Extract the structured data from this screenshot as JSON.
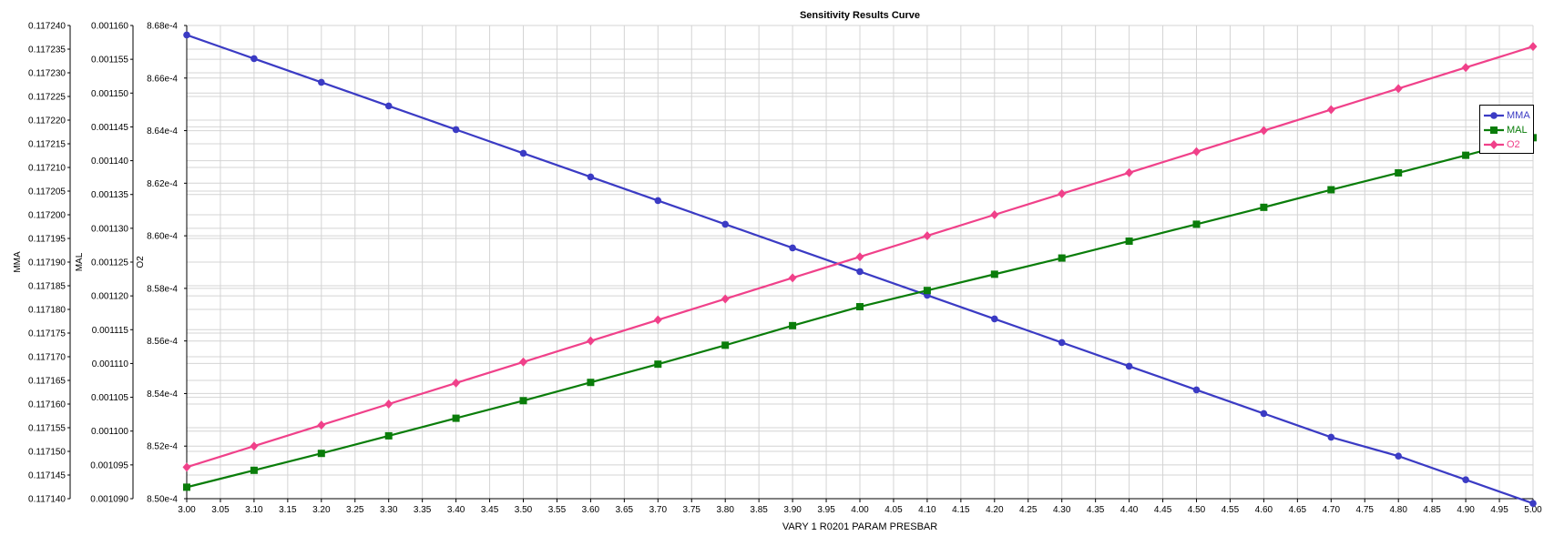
{
  "chart_data": {
    "type": "line",
    "title": "Sensitivity Results Curve",
    "xlabel": "VARY  1 R0201 PARAM PRESBAR",
    "xlim": [
      3.0,
      5.0
    ],
    "x_ticks": [
      "3.00",
      "3.05",
      "3.10",
      "3.15",
      "3.20",
      "3.25",
      "3.30",
      "3.35",
      "3.40",
      "3.45",
      "3.50",
      "3.55",
      "3.60",
      "3.65",
      "3.70",
      "3.75",
      "3.80",
      "3.85",
      "3.90",
      "3.95",
      "4.00",
      "4.05",
      "4.10",
      "4.15",
      "4.20",
      "4.25",
      "4.30",
      "4.35",
      "4.40",
      "4.45",
      "4.50",
      "4.55",
      "4.60",
      "4.65",
      "4.70",
      "4.75",
      "4.80",
      "4.85",
      "4.90",
      "4.95",
      "5.00"
    ],
    "x": [
      3.0,
      3.1,
      3.2,
      3.3,
      3.4,
      3.5,
      3.6,
      3.7,
      3.8,
      3.9,
      4.0,
      4.1,
      4.2,
      4.3,
      4.4,
      4.5,
      4.6,
      4.7,
      4.8,
      4.9,
      5.0
    ],
    "grid": true,
    "legend_position": "right",
    "axes": [
      {
        "id": "mma",
        "label": "MMA",
        "ylim": [
          0.11714,
          0.11724
        ],
        "ticks": [
          "0.117140",
          "0.117145",
          "0.117150",
          "0.117155",
          "0.117160",
          "0.117165",
          "0.117170",
          "0.117175",
          "0.117180",
          "0.117185",
          "0.117190",
          "0.117195",
          "0.117200",
          "0.117205",
          "0.117210",
          "0.117215",
          "0.117220",
          "0.117225",
          "0.117230",
          "0.117235",
          "0.117240"
        ]
      },
      {
        "id": "mal",
        "label": "MAL",
        "ylim": [
          0.00109,
          0.00116
        ],
        "ticks": [
          "0.001090",
          "0.001095",
          "0.001100",
          "0.001105",
          "0.001110",
          "0.001115",
          "0.001120",
          "0.001125",
          "0.001130",
          "0.001135",
          "0.001140",
          "0.001145",
          "0.001150",
          "0.001155",
          "0.001160"
        ]
      },
      {
        "id": "o2",
        "label": "O2",
        "ylim": [
          0.00085,
          0.000868
        ],
        "ticks": [
          "8.50e-4",
          "8.52e-4",
          "8.54e-4",
          "8.56e-4",
          "8.58e-4",
          "8.60e-4",
          "8.62e-4",
          "8.64e-4",
          "8.66e-4",
          "8.68e-4"
        ]
      }
    ],
    "series": [
      {
        "name": "MMA",
        "axis": "mma",
        "color": "#3b3bc4",
        "marker": "circle",
        "values": [
          0.117238,
          0.117233,
          0.117228,
          0.117223,
          0.117218,
          0.117213,
          0.117208,
          0.117203,
          0.117198,
          0.117193,
          0.117188,
          0.117183,
          0.117178,
          0.117173,
          0.117168,
          0.117163,
          0.117158,
          0.117153,
          0.117149,
          0.117144,
          0.117139
        ]
      },
      {
        "name": "MAL",
        "axis": "mal",
        "color": "#0a7d0a",
        "marker": "square",
        "values": [
          0.0010917,
          0.0010942,
          0.0010967,
          0.0010993,
          0.0011019,
          0.0011045,
          0.0011072,
          0.0011099,
          0.0011127,
          0.0011156,
          0.0011184,
          0.0011208,
          0.0011232,
          0.0011256,
          0.0011281,
          0.0011306,
          0.0011331,
          0.0011357,
          0.0011382,
          0.0011408,
          0.0011434
        ]
      },
      {
        "name": "O2",
        "axis": "o2",
        "color": "#f0418a",
        "marker": "diamond",
        "values": [
          0.0008512,
          0.000852,
          0.0008528,
          0.0008536,
          0.0008544,
          0.0008552,
          0.000856,
          0.0008568,
          0.0008576,
          0.0008584,
          0.0008592,
          0.00086,
          0.0008608,
          0.0008616,
          0.0008624,
          0.0008632,
          0.000864,
          0.0008648,
          0.0008656,
          0.0008664,
          0.0008672
        ]
      }
    ]
  }
}
